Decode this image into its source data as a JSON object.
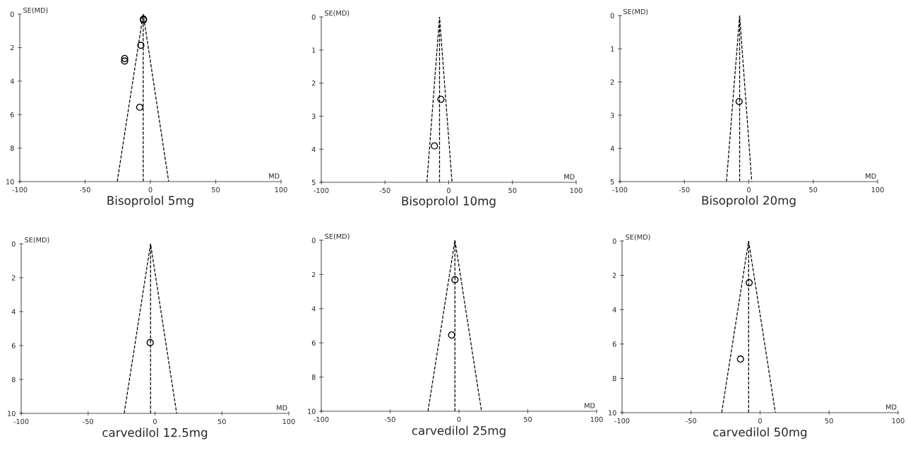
{
  "chart_data": [
    {
      "type": "scatter",
      "title": "Bisoprolol 5mg",
      "xlabel": "MD",
      "ylabel": "SE(MD)",
      "xlim": [
        -100,
        100
      ],
      "xticks": [
        -100,
        -50,
        0,
        50,
        100
      ],
      "ylim": [
        10,
        0
      ],
      "yticks": [
        0,
        2,
        4,
        6,
        8,
        10
      ],
      "grid": false,
      "series": [
        {
          "color": "#000000",
          "marker": "circle",
          "x": [
            -5.3,
            -5.3,
            -7.3,
            -19.7,
            -19.7,
            -8.2
          ],
          "values": [
            0.3,
            0.35,
            1.86,
            2.65,
            2.8,
            5.56
          ]
        },
        {
          "type": "line",
          "color": "#000000",
          "line_style": "dashed",
          "x": [
            -25.4,
            -5.5,
            14
          ],
          "values": [
            10,
            0,
            10
          ]
        }
      ],
      "ref_lines": [
        {
          "axis": "x",
          "value": -5.5,
          "color": "#000000",
          "line_style": "dashed"
        }
      ]
    },
    {
      "type": "scatter",
      "title": "Bisoprolol 10mg",
      "xlabel": "MD",
      "ylabel": "SE(MD)",
      "xlim": [
        -100,
        100
      ],
      "xticks": [
        -100,
        -50,
        0,
        50,
        100
      ],
      "ylim": [
        5,
        0
      ],
      "yticks": [
        0,
        1,
        2,
        3,
        4,
        5
      ],
      "grid": false,
      "series": [
        {
          "color": "#000000",
          "marker": "circle",
          "x": [
            -6.1,
            -11.2
          ],
          "values": [
            2.49,
            3.9
          ]
        },
        {
          "type": "line",
          "color": "#000000",
          "line_style": "dashed",
          "x": [
            -17.1,
            -7.2,
            2.6
          ],
          "values": [
            5,
            0,
            5
          ]
        }
      ],
      "ref_lines": [
        {
          "axis": "x",
          "value": -7.2,
          "color": "#000000",
          "line_style": "dashed"
        }
      ]
    },
    {
      "type": "scatter",
      "title": "Bisoprolol 20mg",
      "xlabel": "MD",
      "ylabel": "SE(MD)",
      "xlim": [
        -100,
        100
      ],
      "xticks": [
        -100,
        -50,
        0,
        50,
        100
      ],
      "ylim": [
        5,
        0
      ],
      "yticks": [
        0,
        1,
        2,
        3,
        4,
        5
      ],
      "grid": false,
      "series": [
        {
          "color": "#000000",
          "marker": "circle",
          "x": [
            -7.5
          ],
          "values": [
            2.59
          ]
        },
        {
          "type": "line",
          "color": "#000000",
          "line_style": "dashed",
          "x": [
            -17.3,
            -7.1,
            2.3
          ],
          "values": [
            5,
            0,
            5
          ]
        }
      ],
      "ref_lines": [
        {
          "axis": "x",
          "value": -7.1,
          "color": "#000000",
          "line_style": "dashed"
        }
      ]
    },
    {
      "type": "scatter",
      "title": "carvedilol 12.5mg",
      "xlabel": "MD",
      "ylabel": "SE(MD)",
      "xlim": [
        -100,
        100
      ],
      "xticks": [
        -100,
        -50,
        0,
        50,
        100
      ],
      "ylim": [
        10,
        0
      ],
      "yticks": [
        0,
        2,
        4,
        6,
        8,
        10
      ],
      "grid": false,
      "series": [
        {
          "color": "#000000",
          "marker": "circle",
          "x": [
            -3.6
          ],
          "values": [
            5.83
          ]
        },
        {
          "type": "line",
          "color": "#000000",
          "line_style": "dashed",
          "x": [
            -23,
            -3.3,
            16.2
          ],
          "values": [
            10,
            0,
            10
          ]
        }
      ],
      "ref_lines": [
        {
          "axis": "x",
          "value": -3.3,
          "color": "#000000",
          "line_style": "dashed"
        }
      ]
    },
    {
      "type": "scatter",
      "title": "carvedilol 25mg",
      "xlabel": "MD",
      "ylabel": "SE(MD)",
      "xlim": [
        -100,
        100
      ],
      "xticks": [
        -100,
        -50,
        0,
        50,
        100
      ],
      "ylim": [
        10,
        0
      ],
      "yticks": [
        0,
        2,
        4,
        6,
        8,
        10
      ],
      "grid": false,
      "series": [
        {
          "color": "#000000",
          "marker": "circle",
          "x": [
            -2.9,
            -5.3
          ],
          "values": [
            2.31,
            5.54
          ]
        },
        {
          "type": "line",
          "color": "#000000",
          "line_style": "dashed",
          "x": [
            -22.5,
            -2.9,
            16.4
          ],
          "values": [
            10,
            0,
            10
          ]
        }
      ],
      "ref_lines": [
        {
          "axis": "x",
          "value": -2.9,
          "color": "#000000",
          "line_style": "dashed"
        }
      ]
    },
    {
      "type": "scatter",
      "title": "carvedilol 50mg",
      "xlabel": "MD",
      "ylabel": "SE(MD)",
      "xlim": [
        -100,
        100
      ],
      "xticks": [
        -100,
        -50,
        0,
        50,
        100
      ],
      "ylim": [
        10,
        0
      ],
      "yticks": [
        0,
        2,
        4,
        6,
        8,
        10
      ],
      "grid": false,
      "series": [
        {
          "color": "#000000",
          "marker": "circle",
          "x": [
            -7.9,
            -14.2
          ],
          "values": [
            2.43,
            6.88
          ]
        },
        {
          "type": "line",
          "color": "#000000",
          "line_style": "dashed",
          "x": [
            -27.8,
            -8.3,
            11.1
          ],
          "values": [
            10,
            0,
            10
          ]
        }
      ],
      "ref_lines": [
        {
          "axis": "x",
          "value": -8.3,
          "color": "#000000",
          "line_style": "dashed"
        }
      ]
    }
  ]
}
